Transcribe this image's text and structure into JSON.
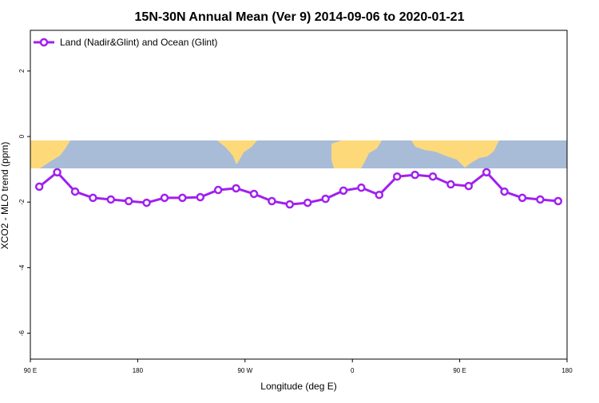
{
  "chart_data": {
    "type": "line",
    "title": "15N-30N Annual Mean (Ver 9)   2014-09-06 to 2020-01-21",
    "x_label": "Longitude (deg E)",
    "y_label": "XCO2 - MLO trend (ppm)",
    "legend_position": "top-left",
    "x": [
      97.5,
      112.5,
      127.5,
      142.5,
      157.5,
      172.5,
      187.5,
      202.5,
      217.5,
      232.5,
      247.5,
      262.5,
      277.5,
      292.5,
      307.5,
      322.5,
      337.5,
      352.5,
      367.5,
      382.5,
      397.5,
      412.5,
      427.5,
      442.5,
      457.5,
      472.5,
      487.5,
      502.5,
      517.5,
      532.5
    ],
    "series": [
      {
        "name": "Land (Nadir&Glint) and Ocean (Glint)",
        "color": "#a020f0",
        "values": [
          -1.53,
          -1.09,
          -1.68,
          -1.87,
          -1.92,
          -1.97,
          -2.02,
          -1.87,
          -1.87,
          -1.85,
          -1.63,
          -1.58,
          -1.75,
          -1.97,
          -2.07,
          -2.02,
          -1.9,
          -1.65,
          -1.56,
          -1.78,
          -1.22,
          -1.17,
          -1.22,
          -1.46,
          -1.51,
          -1.09,
          -1.68,
          -1.87,
          -1.92,
          -1.97
        ]
      }
    ],
    "xlim": [
      90,
      540
    ],
    "xticks": [
      {
        "value": 90,
        "label": "90 E"
      },
      180,
      {
        "value": 270,
        "label": "90 W"
      },
      {
        "value": 360,
        "label": "0"
      },
      {
        "value": 450,
        "label": "90 E"
      },
      {
        "value": 540,
        "label": "180"
      }
    ],
    "ylim": [
      -6.79,
      3.24
    ],
    "yticks": [
      -6,
      -4,
      -2,
      0,
      2
    ]
  }
}
